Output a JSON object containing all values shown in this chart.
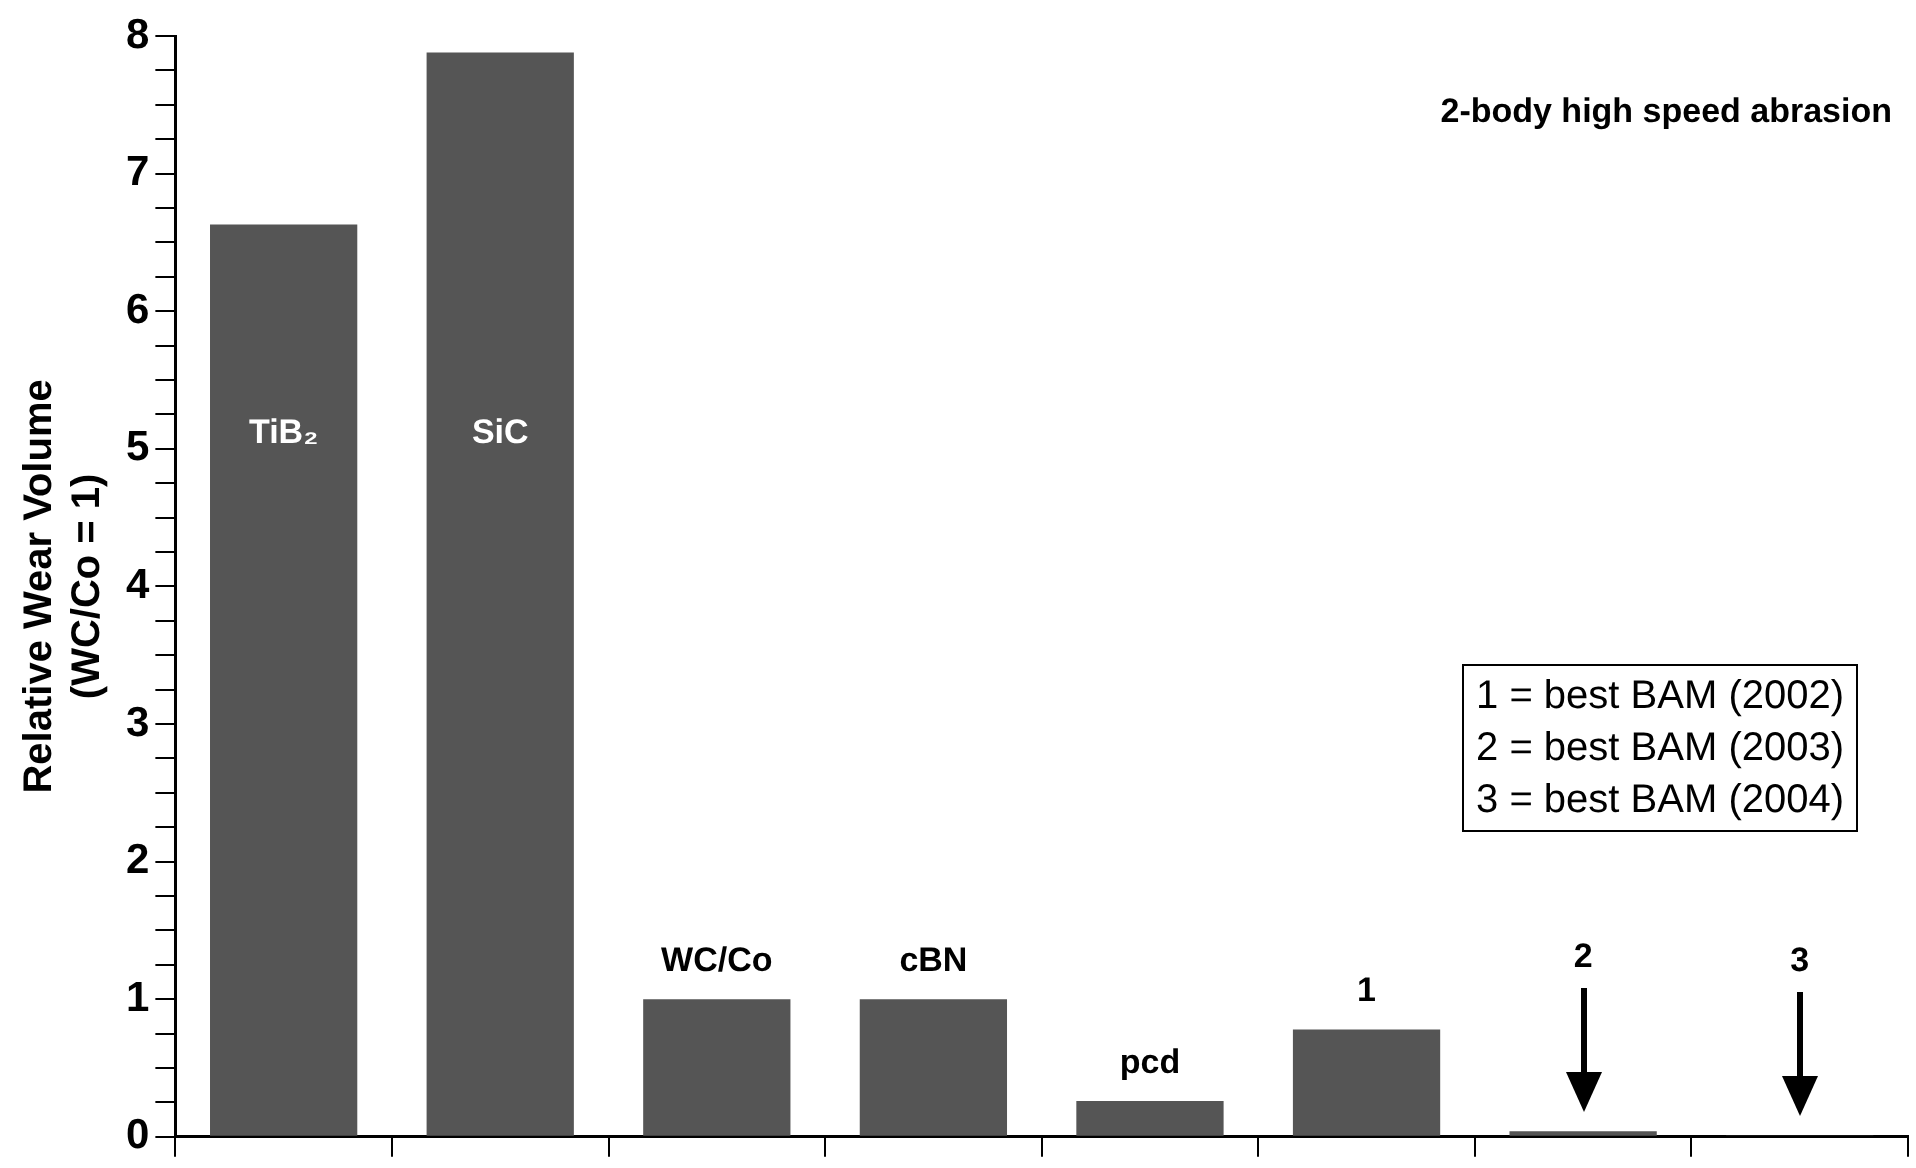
{
  "chart_data": {
    "type": "bar",
    "title": "2-body high speed abrasion",
    "ylabel": "Relative Wear Volume\n(WC/Co = 1)",
    "categories": [
      "TiB₂",
      "SiC",
      "WC/Co",
      "cBN",
      "pcd",
      "1",
      "2",
      "3"
    ],
    "values": [
      6.63,
      7.88,
      1,
      1,
      0.26,
      0.78,
      0.04,
      0.01
    ],
    "color": "#555555",
    "ylim": [
      0,
      8
    ],
    "yticks": [
      0,
      {
        "value": 0.25,
        "label": null
      },
      {
        "value": 0.5,
        "label": null
      },
      {
        "value": 0.75,
        "label": null
      },
      1,
      {
        "value": 1.25,
        "label": null
      },
      {
        "value": 1.5,
        "label": null
      },
      {
        "value": 1.75,
        "label": null
      },
      2,
      {
        "value": 2.25,
        "label": null
      },
      {
        "value": 2.5,
        "label": null
      },
      {
        "value": 2.75,
        "label": null
      },
      3,
      {
        "value": 3.25,
        "label": null
      },
      {
        "value": 3.5,
        "label": null
      },
      {
        "value": 3.75,
        "label": null
      },
      4,
      {
        "value": 4.25,
        "label": null
      },
      {
        "value": 4.5,
        "label": null
      },
      {
        "value": 4.75,
        "label": null
      },
      5,
      {
        "value": 5.25,
        "label": null
      },
      {
        "value": 5.5,
        "label": null
      },
      {
        "value": 5.75,
        "label": null
      },
      6,
      {
        "value": 6.25,
        "label": null
      },
      {
        "value": 6.5,
        "label": null
      },
      {
        "value": 6.75,
        "label": null
      },
      7,
      {
        "value": 7.25,
        "label": null
      },
      {
        "value": 7.5,
        "label": null
      },
      {
        "value": 7.75,
        "label": null
      },
      8
    ],
    "annotations": [
      "1 = best BAM (2002)",
      "2 = best BAM (2003)",
      "3 = best BAM (2004)"
    ],
    "grid": false,
    "legend": false
  }
}
